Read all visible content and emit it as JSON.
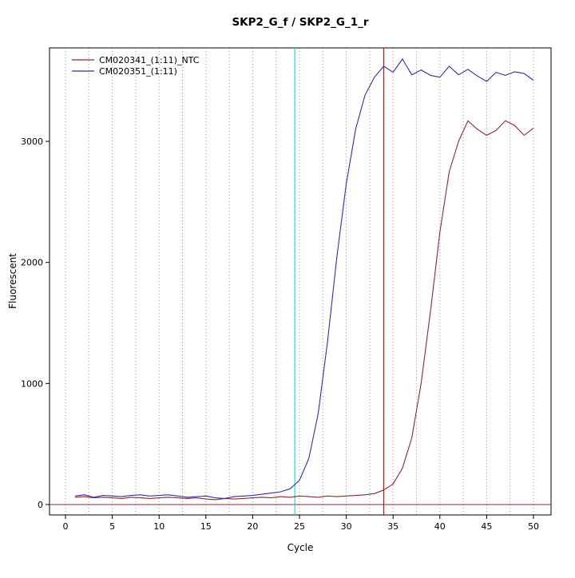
{
  "chart_data": {
    "type": "line",
    "title": "SKP2_G_f / SKP2_G_1_r",
    "xlabel": "Cycle",
    "ylabel": "Fluorescent",
    "xlim": [
      -1.71,
      51.88
    ],
    "ylim": [
      -86,
      3772
    ],
    "x_ticks": [
      0,
      5,
      10,
      15,
      20,
      25,
      30,
      35,
      40,
      45,
      50
    ],
    "y_ticks": [
      0,
      1000,
      2000,
      3000
    ],
    "grid": {
      "vertical_step": 2.5,
      "style": "dotted",
      "color": "#999999"
    },
    "box_color": "#000000",
    "threshold_line": {
      "y": 0,
      "color": "#8b2a2a"
    },
    "vlines": [
      {
        "x": 24.5,
        "color": "#00e5ee",
        "name": "ct-line-cyan"
      },
      {
        "x": 34,
        "color": "#8b2a2a",
        "name": "ct-line-red"
      }
    ],
    "legend_position": "top-left",
    "x": [
      1,
      2,
      3,
      4,
      5,
      6,
      7,
      8,
      9,
      10,
      11,
      12,
      13,
      14,
      15,
      16,
      17,
      18,
      19,
      20,
      21,
      22,
      23,
      24,
      25,
      26,
      27,
      28,
      29,
      30,
      31,
      32,
      33,
      34,
      35,
      36,
      37,
      38,
      39,
      40,
      41,
      42,
      43,
      44,
      45,
      46,
      47,
      48,
      49,
      50
    ],
    "series": [
      {
        "name": "CM020341_(1:11)_NTC",
        "color": "#8b2a2a",
        "values": [
          60,
          65,
          55,
          60,
          55,
          50,
          60,
          55,
          50,
          55,
          60,
          55,
          50,
          55,
          45,
          40,
          50,
          45,
          50,
          55,
          60,
          55,
          65,
          60,
          70,
          65,
          60,
          70,
          65,
          70,
          75,
          80,
          90,
          120,
          170,
          300,
          550,
          1000,
          1600,
          2250,
          2750,
          3000,
          3170,
          3100,
          3050,
          3090,
          3170,
          3130,
          3050,
          3110
        ]
      },
      {
        "name": "CM020351_(1:11)",
        "color": "#30309e",
        "values": [
          70,
          80,
          60,
          75,
          70,
          65,
          75,
          80,
          70,
          75,
          80,
          70,
          60,
          65,
          70,
          55,
          50,
          65,
          70,
          75,
          85,
          95,
          105,
          130,
          200,
          380,
          750,
          1350,
          2050,
          2650,
          3100,
          3380,
          3530,
          3620,
          3570,
          3680,
          3550,
          3590,
          3545,
          3530,
          3620,
          3550,
          3595,
          3540,
          3495,
          3570,
          3545,
          3575,
          3560,
          3505
        ]
      }
    ]
  }
}
